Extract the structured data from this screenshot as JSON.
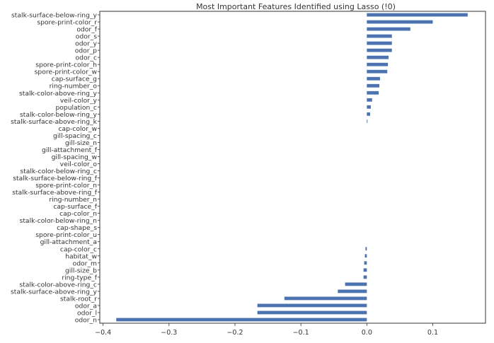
{
  "chart_data": {
    "type": "bar",
    "orientation": "horizontal",
    "title": "Most Important Features Identified using Lasso (!0)",
    "xlabel": "",
    "ylabel": "",
    "xlim": [
      -0.405,
      0.18
    ],
    "xticks": [
      -0.4,
      -0.3,
      -0.2,
      -0.1,
      0.0,
      0.1
    ],
    "xtick_labels": [
      "−0.4",
      "−0.3",
      "−0.2",
      "−0.1",
      "0.0",
      "0.1"
    ],
    "grid": false,
    "bar_color": "#4c72b0",
    "categories": [
      "stalk-surface-below-ring_y",
      "spore-print-color_r",
      "odor_f",
      "odor_s",
      "odor_y",
      "odor_p",
      "odor_c",
      "spore-print-color_h",
      "spore-print-color_w",
      "cap-surface_g",
      "ring-number_o",
      "stalk-color-above-ring_y",
      "veil-color_y",
      "population_c",
      "stalk-color-below-ring_y",
      "stalk-surface-above-ring_k",
      "cap-color_w",
      "gill-spacing_c",
      "gill-size_n",
      "gill-attachment_f",
      "gill-spacing_w",
      "veil-color_o",
      "stalk-color-below-ring_c",
      "stalk-surface-below-ring_f",
      "spore-print-color_n",
      "stalk-surface-above-ring_f",
      "ring-number_n",
      "cap-surface_f",
      "cap-color_n",
      "stalk-color-below-ring_n",
      "cap-shape_s",
      "spore-print-color_u",
      "gill-attachment_a",
      "cap-color_c",
      "habitat_w",
      "odor_m",
      "gill-size_b",
      "ring-type_f",
      "stalk-color-above-ring_c",
      "stalk-surface-above-ring_y",
      "stalk-root_r",
      "odor_a",
      "odor_l",
      "odor_n"
    ],
    "values": [
      0.153,
      0.1,
      0.066,
      0.038,
      0.038,
      0.038,
      0.033,
      0.032,
      0.031,
      0.02,
      0.019,
      0.018,
      0.008,
      0.006,
      0.005,
      0.001,
      0,
      0,
      0,
      0,
      0,
      0,
      0,
      0,
      0,
      0,
      0,
      0,
      0,
      0,
      0,
      0,
      0,
      -0.002,
      -0.003,
      -0.004,
      -0.005,
      -0.005,
      -0.033,
      -0.044,
      -0.125,
      -0.166,
      -0.166,
      -0.38
    ]
  }
}
